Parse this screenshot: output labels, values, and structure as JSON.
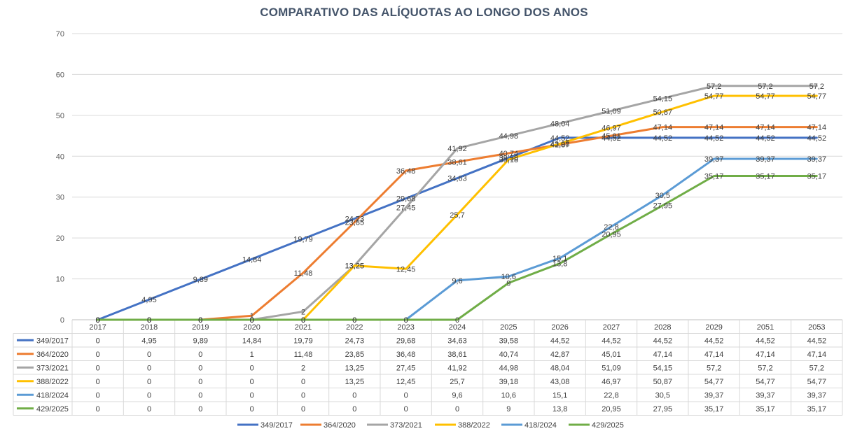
{
  "chart_data": {
    "type": "line",
    "title": "COMPARATIVO DAS ALÍQUOTAS AO LONGO DOS ANOS",
    "categories": [
      "2017",
      "2018",
      "2019",
      "2020",
      "2021",
      "2022",
      "2023",
      "2024",
      "2025",
      "2026",
      "2027",
      "2028",
      "2029",
      "2051",
      "2053"
    ],
    "ylim": [
      0,
      70
    ],
    "yticks": [
      0,
      10,
      20,
      30,
      40,
      50,
      60,
      70
    ],
    "grid": true,
    "legend_position": "bottom",
    "data_table": true,
    "series": [
      {
        "name": "349/2017",
        "color": "#4472c4",
        "values": [
          0,
          4.95,
          9.89,
          14.84,
          19.79,
          24.73,
          29.68,
          34.63,
          39.58,
          44.52,
          44.52,
          44.52,
          44.52,
          44.52,
          44.52
        ]
      },
      {
        "name": "364/2020",
        "color": "#ed7d31",
        "values": [
          0,
          0,
          0,
          1,
          11.48,
          23.85,
          36.48,
          38.61,
          40.74,
          42.87,
          45.01,
          47.14,
          47.14,
          47.14,
          47.14
        ]
      },
      {
        "name": "373/2021",
        "color": "#a5a5a5",
        "values": [
          0,
          0,
          0,
          0,
          2,
          13.25,
          27.45,
          41.92,
          44.98,
          48.04,
          51.09,
          54.15,
          57.2,
          57.2,
          57.2
        ]
      },
      {
        "name": "388/2022",
        "color": "#ffc000",
        "values": [
          0,
          0,
          0,
          0,
          0,
          13.25,
          12.45,
          25.7,
          39.18,
          43.08,
          46.97,
          50.87,
          54.77,
          54.77,
          54.77
        ]
      },
      {
        "name": "418/2024",
        "color": "#5b9bd5",
        "values": [
          0,
          0,
          0,
          0,
          0,
          0,
          0,
          9.6,
          10.6,
          15.1,
          22.8,
          30.5,
          39.37,
          39.37,
          39.37
        ]
      },
      {
        "name": "429/2025",
        "color": "#70ad47",
        "values": [
          0,
          0,
          0,
          0,
          0,
          0,
          0,
          0,
          9,
          13.8,
          20.95,
          27.95,
          35.17,
          35.17,
          35.17
        ]
      }
    ]
  }
}
